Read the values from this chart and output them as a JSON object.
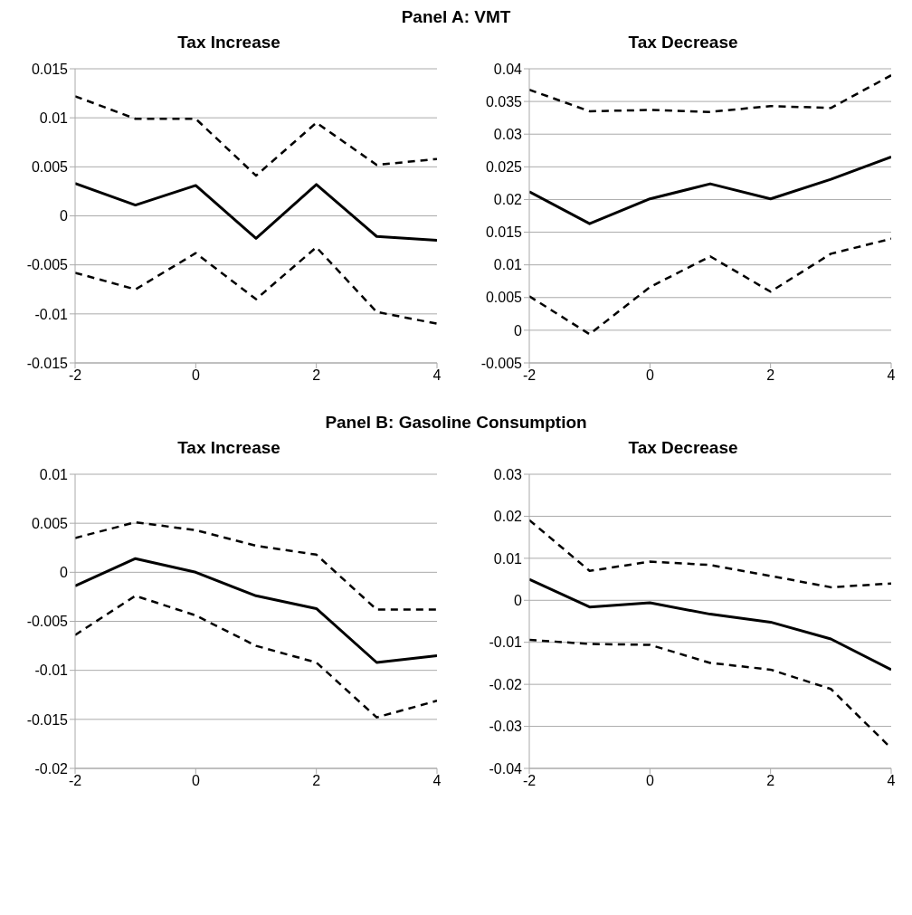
{
  "chart_data": [
    {
      "type": "line",
      "title": "Tax Increase",
      "annotations": [
        "Panel A: VMT"
      ],
      "x": [
        -2,
        -1,
        0,
        1,
        2,
        3,
        4
      ],
      "xlim": [
        -2,
        4
      ],
      "xticks": [
        -2,
        0,
        2,
        4
      ],
      "ylim": [
        -0.015,
        0.015
      ],
      "yticks": [
        -0.015,
        -0.01,
        -0.005,
        0,
        0.005,
        0.01,
        0.015
      ],
      "grid": "y",
      "marker": "none",
      "series": [
        {
          "color": "#000000",
          "line_style": "solid",
          "values": [
            0.0033,
            0.0011,
            0.0031,
            -0.0023,
            0.0032,
            -0.0021,
            -0.0025
          ]
        },
        {
          "color": "#000000",
          "line_style": "dashed",
          "values": [
            0.0122,
            0.0099,
            0.0099,
            0.0041,
            0.0095,
            0.0052,
            0.0058
          ]
        },
        {
          "color": "#000000",
          "line_style": "dashed",
          "values": [
            -0.0058,
            -0.0075,
            -0.0038,
            -0.0085,
            -0.0032,
            -0.0098,
            -0.011
          ]
        }
      ]
    },
    {
      "type": "line",
      "title": "Tax Decrease",
      "x": [
        -2,
        -1,
        0,
        1,
        2,
        3,
        4
      ],
      "xlim": [
        -2,
        4
      ],
      "xticks": [
        -2,
        0,
        2,
        4
      ],
      "ylim": [
        -0.005,
        0.04
      ],
      "yticks": [
        -0.005,
        0,
        0.005,
        0.01,
        0.015,
        0.02,
        0.025,
        0.03,
        0.035,
        0.04
      ],
      "grid": "y",
      "marker": "none",
      "series": [
        {
          "color": "#000000",
          "line_style": "solid",
          "values": [
            0.0212,
            0.0163,
            0.0201,
            0.0224,
            0.0201,
            0.0231,
            0.0265
          ]
        },
        {
          "color": "#000000",
          "line_style": "dashed",
          "values": [
            0.0368,
            0.0335,
            0.0337,
            0.0334,
            0.0343,
            0.034,
            0.039
          ]
        },
        {
          "color": "#000000",
          "line_style": "dashed",
          "values": [
            0.0052,
            -0.0006,
            0.0066,
            0.0113,
            0.0059,
            0.0117,
            0.014
          ]
        }
      ]
    },
    {
      "type": "line",
      "title": "Tax Increase",
      "annotations": [
        "Panel B: Gasoline Consumption"
      ],
      "x": [
        -2,
        -1,
        0,
        1,
        2,
        3,
        4
      ],
      "xlim": [
        -2,
        4
      ],
      "xticks": [
        -2,
        0,
        2,
        4
      ],
      "ylim": [
        -0.02,
        0.01
      ],
      "yticks": [
        -0.02,
        -0.015,
        -0.01,
        -0.005,
        0,
        0.005,
        0.01
      ],
      "grid": "y",
      "marker": "none",
      "series": [
        {
          "color": "#000000",
          "line_style": "solid",
          "values": [
            -0.0014,
            0.0014,
            0,
            -0.0024,
            -0.0037,
            -0.0092,
            -0.0085
          ]
        },
        {
          "color": "#000000",
          "line_style": "dashed",
          "values": [
            0.0035,
            0.0051,
            0.0043,
            0.0027,
            0.0018,
            -0.0038,
            -0.0038
          ]
        },
        {
          "color": "#000000",
          "line_style": "dashed",
          "values": [
            -0.0064,
            -0.0024,
            -0.0044,
            -0.0075,
            -0.0092,
            -0.0148,
            -0.0131
          ]
        }
      ]
    },
    {
      "type": "line",
      "title": "Tax Decrease",
      "x": [
        -2,
        -1,
        0,
        1,
        2,
        3,
        4
      ],
      "xlim": [
        -2,
        4
      ],
      "xticks": [
        -2,
        0,
        2,
        4
      ],
      "ylim": [
        -0.04,
        0.03
      ],
      "yticks": [
        -0.04,
        -0.03,
        -0.02,
        -0.01,
        0,
        0.01,
        0.02,
        0.03
      ],
      "grid": "y",
      "marker": "none",
      "series": [
        {
          "color": "#000000",
          "line_style": "solid",
          "values": [
            0.005,
            -0.0016,
            -0.0006,
            -0.0033,
            -0.0052,
            -0.0092,
            -0.0165
          ]
        },
        {
          "color": "#000000",
          "line_style": "dashed",
          "values": [
            0.0191,
            0.007,
            0.0092,
            0.0084,
            0.0058,
            0.0031,
            0.004
          ]
        },
        {
          "color": "#000000",
          "line_style": "dashed",
          "values": [
            -0.0094,
            -0.0104,
            -0.0106,
            -0.0149,
            -0.0165,
            -0.0211,
            -0.0352
          ]
        }
      ]
    }
  ]
}
